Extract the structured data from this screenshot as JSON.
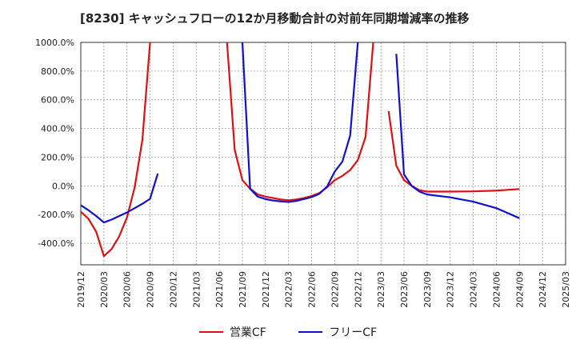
{
  "chart_data": {
    "type": "line",
    "title": "[8230]  キャッシュフローの12か月移動合計の対前年同期増減率の推移",
    "xlabel": "",
    "ylabel": "",
    "ylim": [
      -550,
      1000
    ],
    "yticks": [
      -400,
      -200,
      0,
      200,
      400,
      600,
      800,
      1000
    ],
    "ytick_labels": [
      "-400.0%",
      "-200.0%",
      "0.0%",
      "200.0%",
      "400.0%",
      "600.0%",
      "800.0%",
      "1000.0%"
    ],
    "xtick_labels": [
      "2019/12",
      "2020/03",
      "2020/06",
      "2020/09",
      "2020/12",
      "2021/03",
      "2021/06",
      "2021/09",
      "2021/12",
      "2022/03",
      "2022/06",
      "2022/09",
      "2022/12",
      "2023/03",
      "2023/06",
      "2023/09",
      "2023/12",
      "2024/03",
      "2024/06",
      "2024/09",
      "2024/12",
      "2025/03"
    ],
    "grid": true,
    "legend_position": "bottom",
    "series": [
      {
        "name": "営業CF",
        "color": "#dd1111",
        "points": [
          [
            "2019/12",
            -180
          ],
          [
            "2020/01",
            -230
          ],
          [
            "2020/02",
            -320
          ],
          [
            "2020/03",
            -490
          ],
          [
            "2020/04",
            -440
          ],
          [
            "2020/05",
            -350
          ],
          [
            "2020/06",
            -220
          ],
          [
            "2020/07",
            -10
          ],
          [
            "2020/08",
            320
          ],
          [
            "2020/09",
            1000
          ],
          null,
          [
            "2021/07",
            1000
          ],
          [
            "2021/08",
            250
          ],
          [
            "2021/09",
            40
          ],
          [
            "2021/10",
            -20
          ],
          [
            "2021/11",
            -60
          ],
          [
            "2021/12",
            -75
          ],
          [
            "2022/01",
            -85
          ],
          [
            "2022/02",
            -95
          ],
          [
            "2022/03",
            -100
          ],
          [
            "2022/04",
            -95
          ],
          [
            "2022/05",
            -85
          ],
          [
            "2022/06",
            -70
          ],
          [
            "2022/07",
            -50
          ],
          [
            "2022/08",
            -10
          ],
          [
            "2022/09",
            40
          ],
          [
            "2022/10",
            70
          ],
          [
            "2022/11",
            110
          ],
          [
            "2022/12",
            180
          ],
          [
            "2023/01",
            340
          ],
          [
            "2023/02",
            1000
          ],
          null,
          [
            "2023/04",
            520
          ],
          [
            "2023/05",
            140
          ],
          [
            "2023/06",
            40
          ],
          [
            "2023/07",
            0
          ],
          [
            "2023/08",
            -30
          ],
          [
            "2023/09",
            -40
          ],
          [
            "2023/12",
            -40
          ],
          [
            "2024/03",
            -38
          ],
          [
            "2024/06",
            -33
          ],
          [
            "2024/09",
            -22
          ]
        ]
      },
      {
        "name": "フリーCF",
        "color": "#1111cc",
        "points": [
          [
            "2019/12",
            -135
          ],
          [
            "2020/01",
            -170
          ],
          [
            "2020/02",
            -210
          ],
          [
            "2020/03",
            -255
          ],
          [
            "2020/04",
            -235
          ],
          [
            "2020/05",
            -210
          ],
          [
            "2020/06",
            -185
          ],
          [
            "2020/07",
            -155
          ],
          [
            "2020/08",
            -125
          ],
          [
            "2020/09",
            -90
          ],
          [
            "2020/10",
            85
          ],
          null,
          [
            "2021/09",
            1000
          ],
          [
            "2021/10",
            -20
          ],
          [
            "2021/11",
            -75
          ],
          [
            "2021/12",
            -92
          ],
          [
            "2022/01",
            -102
          ],
          [
            "2022/02",
            -108
          ],
          [
            "2022/03",
            -112
          ],
          [
            "2022/04",
            -105
          ],
          [
            "2022/05",
            -92
          ],
          [
            "2022/06",
            -78
          ],
          [
            "2022/07",
            -55
          ],
          [
            "2022/08",
            -5
          ],
          [
            "2022/09",
            100
          ],
          [
            "2022/10",
            170
          ],
          [
            "2022/11",
            350
          ],
          [
            "2022/12",
            1000
          ],
          null,
          [
            "2023/05",
            920
          ],
          [
            "2023/06",
            80
          ],
          [
            "2023/07",
            0
          ],
          [
            "2023/08",
            -40
          ],
          [
            "2023/09",
            -60
          ],
          [
            "2023/12",
            -80
          ],
          [
            "2024/03",
            -110
          ],
          [
            "2024/06",
            -155
          ],
          [
            "2024/09",
            -225
          ]
        ]
      }
    ]
  }
}
